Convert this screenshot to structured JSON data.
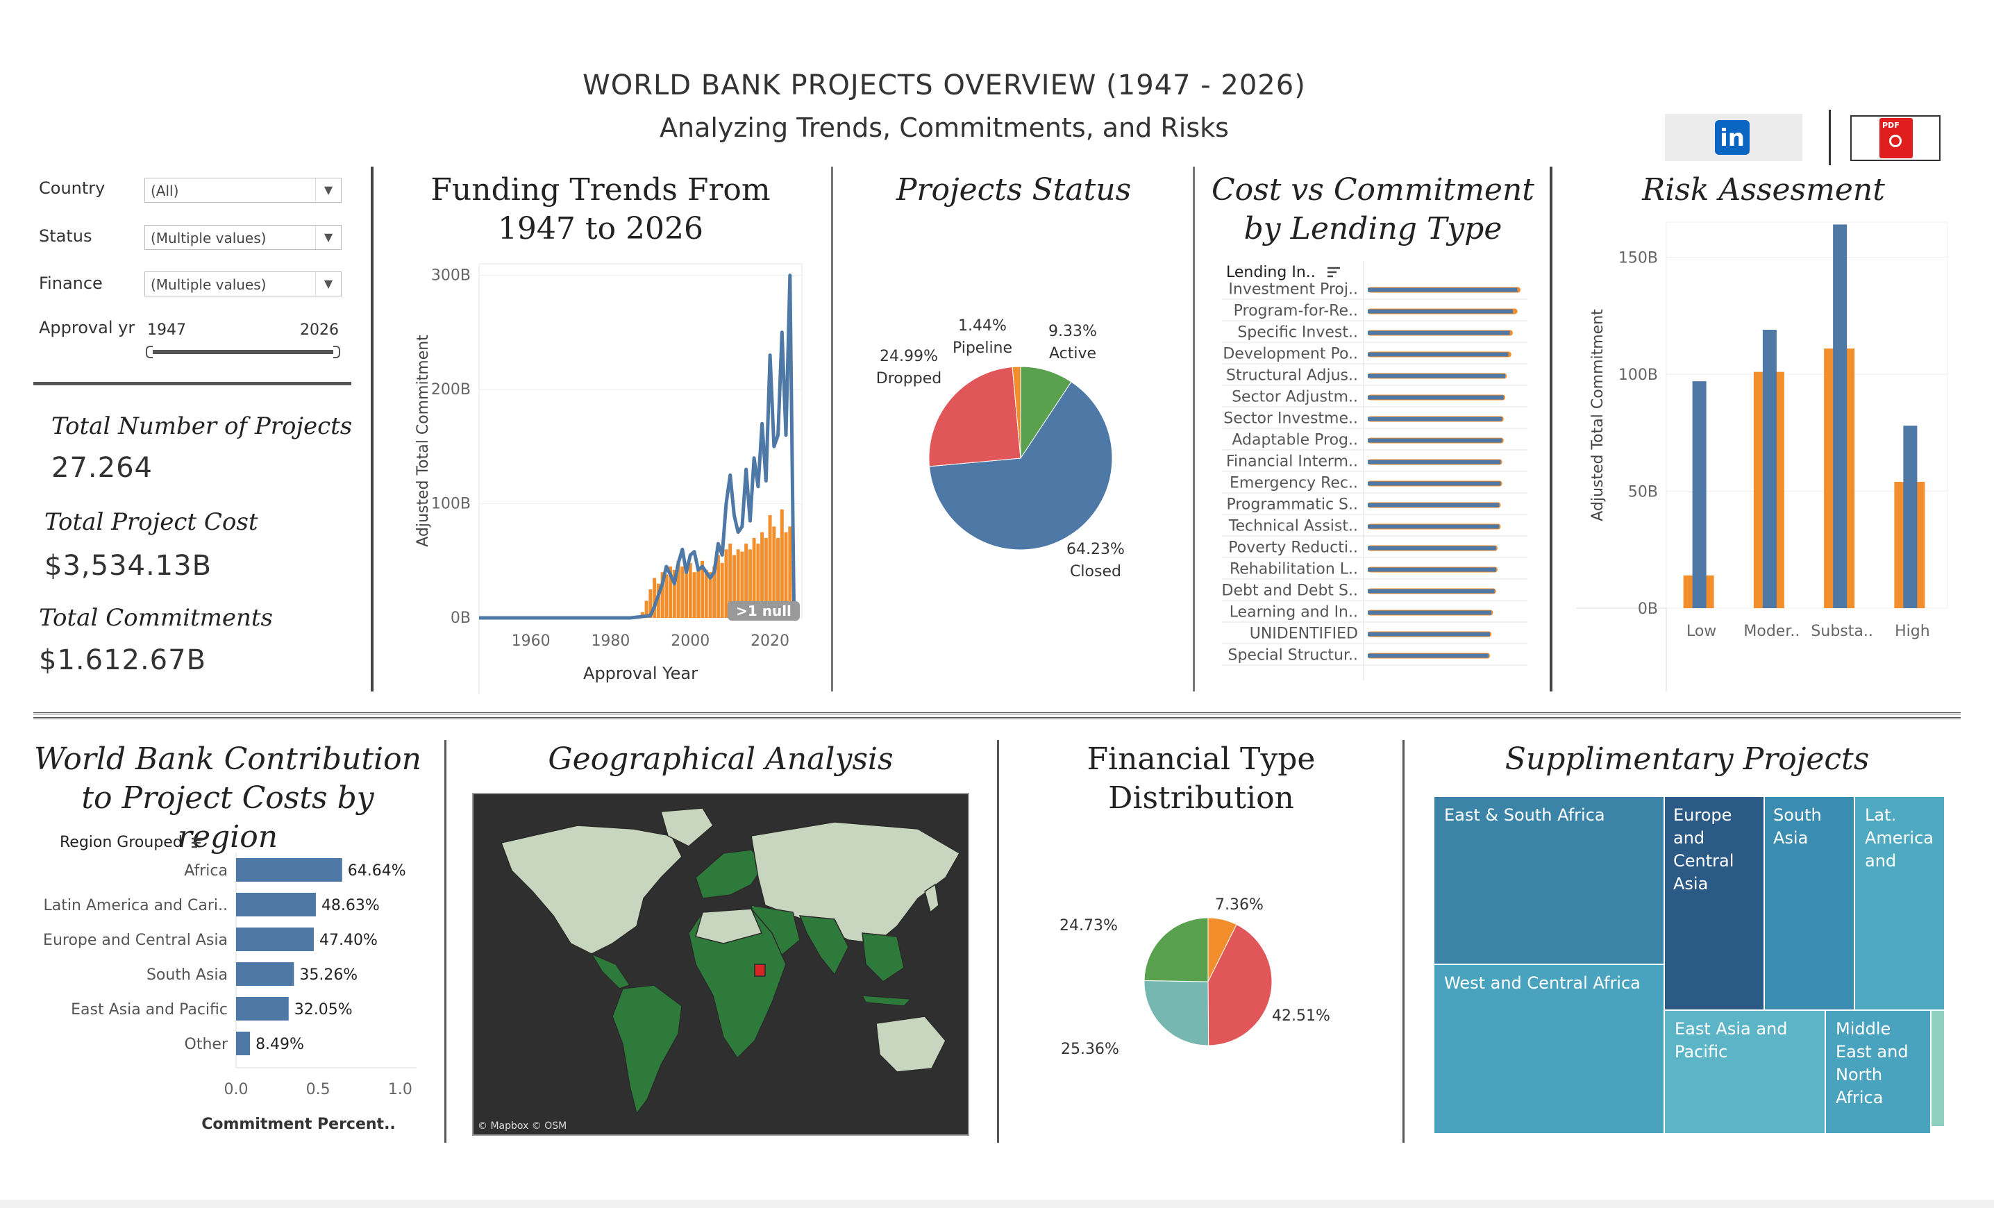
{
  "header": {
    "title": "WORLD BANK PROJECTS OVERVIEW (1947 - 2026)",
    "subtitle": "Analyzing Trends, Commitments, and Risks",
    "linkedin_icon": "linkedin-icon",
    "pdf_icon": "pdf-icon",
    "pdf_badge": "PDF"
  },
  "filters": {
    "country": {
      "label": "Country",
      "value": "(All)"
    },
    "status": {
      "label": "Status",
      "value": "(Multiple values)"
    },
    "finance": {
      "label": "Finance",
      "value": "(Multiple values)"
    },
    "approval": {
      "label": "Approval yr",
      "min": "1947",
      "max": "2026"
    }
  },
  "kpis": {
    "projects": {
      "label": "Total Number of Projects",
      "value": "27.264"
    },
    "cost": {
      "label": "Total Project Cost",
      "value": "$3,534.13B"
    },
    "commitments": {
      "label": "Total Commitments",
      "value": "$1.612.67B"
    }
  },
  "colors": {
    "blue": "#4e79a7",
    "orange": "#f28e2b",
    "red": "#e15759",
    "green": "#59a14f",
    "teal": "#76b7b2",
    "map_bg": "#2f2f2f"
  },
  "funding": {
    "title": "Funding Trends From 1947 to 2026",
    "null_badge": ">1 null",
    "chart_data": {
      "type": "line",
      "xlabel": "Approval Year",
      "ylabel": "Adjusted Total Commitment",
      "x_ticks": [
        "1960",
        "1980",
        "2000",
        "2020"
      ],
      "y_ticks": [
        "0B",
        "100B",
        "200B",
        "300B"
      ],
      "xlim": [
        1947,
        2028
      ],
      "ylim": [
        0,
        310
      ],
      "series": [
        {
          "x": [
            1947,
            1955,
            1965,
            1975,
            1985,
            1990,
            1991,
            1992,
            1993,
            1994,
            1995,
            1996,
            1997,
            1998,
            1999,
            2000,
            2001,
            2002,
            2003,
            2004,
            2005,
            2006,
            2007,
            2008,
            2009,
            2010,
            2011,
            2012,
            2013,
            2014,
            2015,
            2016,
            2017,
            2018,
            2019,
            2020,
            2021,
            2022,
            2023,
            2024,
            2025,
            2026
          ],
          "y": [
            0,
            0,
            0,
            0,
            0,
            2,
            10,
            20,
            30,
            45,
            38,
            30,
            48,
            60,
            40,
            55,
            58,
            42,
            45,
            40,
            35,
            40,
            65,
            55,
            100,
            125,
            90,
            75,
            80,
            130,
            85,
            140,
            115,
            170,
            120,
            230,
            150,
            160,
            250,
            160,
            300,
            10
          ]
        }
      ],
      "bars": {
        "x": [
          1988,
          1989,
          1990,
          1991,
          1992,
          1993,
          1994,
          1995,
          1996,
          1997,
          1998,
          1999,
          2000,
          2001,
          2002,
          2003,
          2004,
          2005,
          2006,
          2007,
          2008,
          2009,
          2010,
          2011,
          2012,
          2013,
          2014,
          2015,
          2016,
          2017,
          2018,
          2019,
          2020,
          2021,
          2022,
          2023,
          2024,
          2025
        ],
        "y": [
          5,
          15,
          25,
          35,
          30,
          40,
          38,
          45,
          42,
          50,
          45,
          40,
          48,
          40,
          45,
          50,
          42,
          40,
          45,
          55,
          48,
          60,
          65,
          55,
          60,
          58,
          65,
          60,
          70,
          65,
          75,
          70,
          90,
          80,
          70,
          95,
          75,
          80
        ]
      }
    }
  },
  "status": {
    "title": "Projects Status",
    "chart_data": {
      "type": "pie",
      "slices": [
        {
          "label": "Closed",
          "value": 64.23,
          "text": "64.23%",
          "color": "#4e79a7"
        },
        {
          "label": "Dropped",
          "value": 24.99,
          "text": "24.99%",
          "color": "#e15759"
        },
        {
          "label": "Pipeline",
          "value": 1.44,
          "text": "1.44%",
          "color": "#f28e2b"
        },
        {
          "label": "Active",
          "value": 9.33,
          "text": "9.33%",
          "color": "#59a14f"
        }
      ]
    }
  },
  "lending": {
    "title": "Cost vs Commitment by Lending Type",
    "header": "Lending In..",
    "chart_data": {
      "type": "bar",
      "categories": [
        "Investment Proj..",
        "Program-for-Re..",
        "Specific Invest..",
        "Development Po..",
        "Structural Adjus..",
        "Sector Adjustm..",
        "Sector Investme..",
        "Adaptable Prog..",
        "Financial Interm..",
        "Emergency Rec..",
        "Programmatic S..",
        "Technical Assist..",
        "Poverty Reducti..",
        "Rehabilitation L..",
        "Debt and Debt S..",
        "Learning and In..",
        "UNIDENTIFIED",
        "Special Structur.."
      ],
      "series": [
        {
          "values": [
            0.98,
            0.95,
            0.93,
            0.92,
            0.9,
            0.89,
            0.88,
            0.88,
            0.87,
            0.87,
            0.86,
            0.86,
            0.84,
            0.84,
            0.83,
            0.81,
            0.8,
            0.79
          ]
        },
        {
          "values": [
            1.0,
            0.98,
            0.95,
            0.94,
            0.91,
            0.9,
            0.89,
            0.89,
            0.88,
            0.88,
            0.87,
            0.87,
            0.85,
            0.85,
            0.84,
            0.82,
            0.81,
            0.8
          ]
        }
      ]
    }
  },
  "risk": {
    "title": "Risk Assesment",
    "chart_data": {
      "type": "bar",
      "ylabel": "Adjusted Total Commitment",
      "categories": [
        "Low",
        "Moder..",
        "Substa..",
        "High"
      ],
      "y_ticks": [
        "0B",
        "50B",
        "100B",
        "150B"
      ],
      "ylim": [
        0,
        165
      ],
      "series": [
        {
          "values": [
            97,
            119,
            164,
            78
          ]
        },
        {
          "values": [
            14,
            101,
            111,
            54
          ]
        }
      ]
    }
  },
  "region": {
    "title": "World Bank Contribution to Project Costs by region",
    "header": "Region Grouped",
    "chart_data": {
      "type": "bar",
      "categories": [
        "Africa",
        "Latin America and Cari..",
        "Europe and Central Asia",
        "South Asia",
        "East Asia and Pacific",
        "Other"
      ],
      "values": [
        0.6464,
        0.4863,
        0.474,
        0.3526,
        0.3205,
        0.0849
      ],
      "value_labels": [
        "64.64%",
        "48.63%",
        "47.40%",
        "35.26%",
        "32.05%",
        "8.49%"
      ],
      "xlabel": "Commitment Percent..",
      "x_ticks": [
        "0.0",
        "0.5",
        "1.0"
      ],
      "xlim": [
        0,
        1.1
      ]
    }
  },
  "geo": {
    "title": "Geographical Analysis",
    "credit": "© Mapbox © OSM"
  },
  "fintype": {
    "title": "Financial Type Distribution",
    "chart_data": {
      "type": "pie",
      "slices": [
        {
          "value": 42.51,
          "text": "42.51%",
          "color": "#e15759"
        },
        {
          "value": 25.36,
          "text": "25.36%",
          "color": "#76b7b2"
        },
        {
          "value": 24.73,
          "text": "24.73%",
          "color": "#59a14f"
        },
        {
          "value": 7.36,
          "text": "7.36%",
          "color": "#f28e2b"
        }
      ]
    }
  },
  "supp": {
    "title": "Supplimentary Projects",
    "tiles": [
      "East & South Africa",
      "West and Central Africa",
      "Europe and Central Asia",
      "South Asia",
      "Lat. America and",
      "East Asia and Pacific",
      "Middle East and North Africa"
    ]
  }
}
